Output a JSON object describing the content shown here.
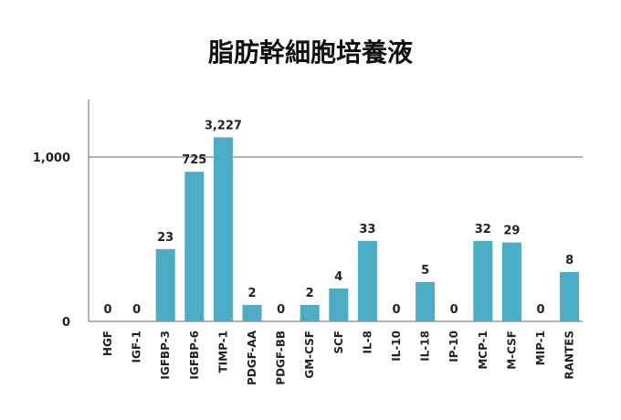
{
  "chart_data": {
    "type": "bar",
    "title": "脂肪幹細胞培養液",
    "xlabel": "",
    "ylabel": "",
    "categories": [
      "HGF",
      "IGF-1",
      "IGFBP-3",
      "IGFBP-6",
      "TIMP-1",
      "PDGF-AA",
      "PDGF-BB",
      "GM-CSF",
      "SCF",
      "IL-8",
      "IL-10",
      "IL-18",
      "IP-10",
      "MCP-1",
      "M-CSF",
      "MIP-1",
      "RANTES"
    ],
    "values": [
      0,
      0,
      23,
      725,
      3227,
      2,
      0,
      2,
      4,
      33,
      0,
      5,
      0,
      32,
      29,
      0,
      8
    ],
    "value_labels": [
      "0",
      "0",
      "23",
      "725",
      "3,227",
      "2",
      "0",
      "2",
      "4",
      "33",
      "0",
      "5",
      "0",
      "32",
      "29",
      "0",
      "8"
    ],
    "bar_levels": [
      0,
      0,
      0.44,
      0.91,
      1.12,
      0.1,
      0,
      0.1,
      0.2,
      0.49,
      0,
      0.24,
      0,
      0.49,
      0.48,
      0,
      0.3
    ],
    "yticks": [
      {
        "label": "0",
        "level": 0
      },
      {
        "label": "1,000",
        "level": 1
      }
    ],
    "ylim_levels": [
      0,
      1.35
    ],
    "scale_note": "non-linear axis; bar heights follow the figure, not proportional to values",
    "grid": "horizontal line at 1,000",
    "legend": "none",
    "bar_color": "#4bacc6",
    "axis_color": "#9a9a9a"
  }
}
